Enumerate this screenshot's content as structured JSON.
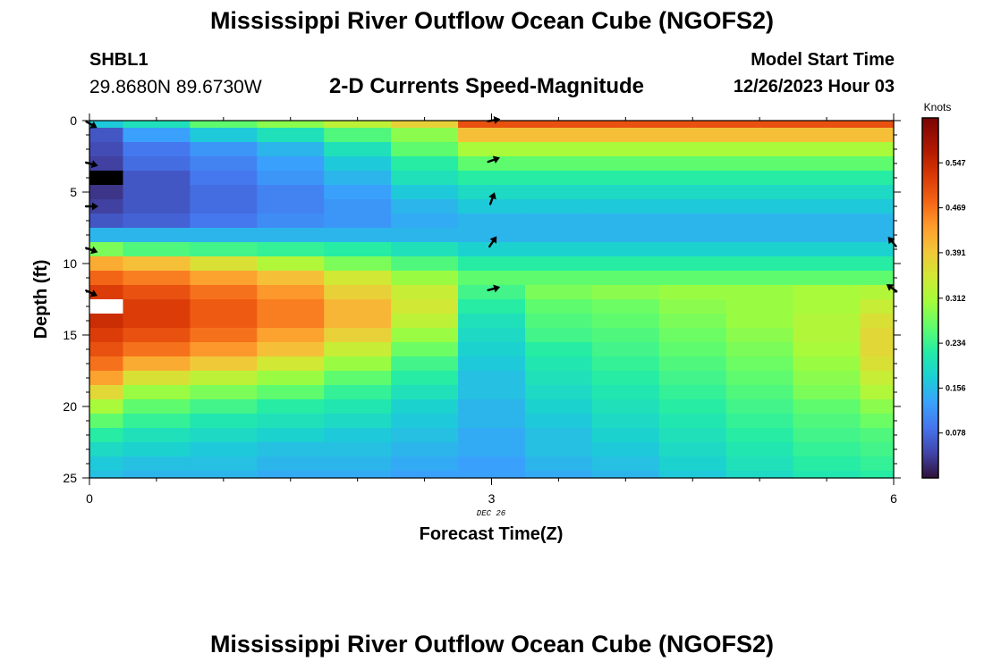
{
  "header": {
    "title": "Mississippi River Outflow Ocean Cube (NGOFS2)",
    "station_id": "SHBL1",
    "station_coords": "29.8680N  89.6730W",
    "subtitle": "2-D Currents Speed-Magnitude",
    "model_label": "Model Start Time",
    "model_time": "12/26/2023 Hour 03"
  },
  "footer": {
    "title": "Mississippi River Outflow Ocean Cube (NGOFS2)"
  },
  "chart_data": {
    "type": "heatmap",
    "title": "2-D Currents Speed-Magnitude",
    "xlabel": "Forecast Time(Z)",
    "ylabel": "Depth (ft)",
    "x_date_label": "DEC 26",
    "xlim": [
      0,
      6
    ],
    "ylim": [
      0,
      25
    ],
    "x_ticks": [
      0,
      3,
      6
    ],
    "y_ticks": [
      0,
      5,
      10,
      15,
      20,
      25
    ],
    "y_inverted": true,
    "colorbar": {
      "unit": "Knots",
      "min": 0.0,
      "max": 0.625,
      "ticks": [
        "0.078",
        "0.156",
        "0.234",
        "0.312",
        "0.391",
        "0.469",
        "0.547"
      ]
    },
    "x_columns": [
      0,
      0.5,
      1,
      1.5,
      2,
      2.5,
      3,
      3.5,
      4,
      4.5,
      5,
      5.5,
      6
    ],
    "depth_rows": [
      0,
      1,
      2,
      3,
      4,
      5,
      6,
      7,
      8,
      9,
      10,
      11,
      12,
      13,
      14,
      15,
      16,
      17,
      18,
      19,
      20,
      21,
      22,
      23,
      24,
      25
    ],
    "values": [
      [
        0.17,
        0.2,
        0.26,
        0.29,
        0.33,
        0.38,
        0.5,
        0.5,
        0.5,
        0.5,
        0.5,
        0.5,
        0.5
      ],
      [
        0.06,
        0.13,
        0.17,
        0.2,
        0.25,
        0.29,
        0.4,
        0.4,
        0.4,
        0.4,
        0.4,
        0.4,
        0.4
      ],
      [
        0.05,
        0.09,
        0.12,
        0.15,
        0.2,
        0.26,
        0.31,
        0.31,
        0.31,
        0.31,
        0.31,
        0.31,
        0.31
      ],
      [
        0.04,
        0.08,
        0.1,
        0.13,
        0.17,
        0.22,
        0.26,
        0.26,
        0.26,
        0.26,
        0.26,
        0.26,
        0.26
      ],
      [
        0.01,
        0.06,
        0.09,
        0.12,
        0.15,
        0.2,
        0.22,
        0.22,
        0.22,
        0.22,
        0.22,
        0.22,
        0.22
      ],
      [
        0.03,
        0.06,
        0.08,
        0.1,
        0.13,
        0.17,
        0.19,
        0.19,
        0.19,
        0.19,
        0.19,
        0.19,
        0.19
      ],
      [
        0.04,
        0.06,
        0.08,
        0.1,
        0.12,
        0.15,
        0.17,
        0.17,
        0.17,
        0.17,
        0.17,
        0.17,
        0.17
      ],
      [
        0.06,
        0.07,
        0.09,
        0.11,
        0.12,
        0.14,
        0.15,
        0.15,
        0.15,
        0.15,
        0.15,
        0.15,
        0.15
      ],
      [
        0.15,
        0.15,
        0.15,
        0.15,
        0.15,
        0.15,
        0.15,
        0.15,
        0.15,
        0.15,
        0.15,
        0.15,
        0.15
      ],
      [
        0.28,
        0.25,
        0.24,
        0.23,
        0.22,
        0.2,
        0.18,
        0.18,
        0.18,
        0.18,
        0.18,
        0.18,
        0.18
      ],
      [
        0.42,
        0.4,
        0.36,
        0.32,
        0.28,
        0.25,
        0.22,
        0.22,
        0.22,
        0.22,
        0.22,
        0.22,
        0.22
      ],
      [
        0.48,
        0.46,
        0.43,
        0.4,
        0.35,
        0.3,
        0.26,
        0.26,
        0.26,
        0.26,
        0.26,
        0.26,
        0.26
      ],
      [
        0.52,
        0.5,
        0.47,
        0.44,
        0.38,
        0.34,
        0.24,
        0.28,
        0.29,
        0.3,
        0.3,
        0.31,
        0.32
      ],
      [
        0.54,
        0.52,
        0.49,
        0.46,
        0.41,
        0.35,
        0.22,
        0.26,
        0.27,
        0.29,
        0.3,
        0.31,
        0.34
      ],
      [
        0.54,
        0.52,
        0.49,
        0.46,
        0.41,
        0.33,
        0.2,
        0.25,
        0.26,
        0.28,
        0.3,
        0.32,
        0.36
      ],
      [
        0.52,
        0.5,
        0.47,
        0.43,
        0.38,
        0.3,
        0.19,
        0.24,
        0.25,
        0.27,
        0.29,
        0.32,
        0.37
      ],
      [
        0.5,
        0.47,
        0.44,
        0.4,
        0.34,
        0.27,
        0.18,
        0.22,
        0.24,
        0.26,
        0.28,
        0.31,
        0.37
      ],
      [
        0.47,
        0.42,
        0.39,
        0.35,
        0.3,
        0.24,
        0.17,
        0.21,
        0.23,
        0.25,
        0.27,
        0.3,
        0.36
      ],
      [
        0.43,
        0.36,
        0.33,
        0.3,
        0.26,
        0.22,
        0.16,
        0.2,
        0.22,
        0.24,
        0.26,
        0.29,
        0.34
      ],
      [
        0.37,
        0.3,
        0.28,
        0.26,
        0.23,
        0.2,
        0.16,
        0.19,
        0.21,
        0.23,
        0.25,
        0.28,
        0.32
      ],
      [
        0.31,
        0.26,
        0.24,
        0.22,
        0.21,
        0.18,
        0.15,
        0.18,
        0.2,
        0.22,
        0.24,
        0.26,
        0.29
      ],
      [
        0.26,
        0.23,
        0.21,
        0.2,
        0.19,
        0.17,
        0.15,
        0.17,
        0.19,
        0.21,
        0.23,
        0.25,
        0.27
      ],
      [
        0.22,
        0.2,
        0.19,
        0.18,
        0.17,
        0.16,
        0.14,
        0.16,
        0.18,
        0.2,
        0.22,
        0.24,
        0.25
      ],
      [
        0.19,
        0.18,
        0.17,
        0.16,
        0.16,
        0.15,
        0.14,
        0.16,
        0.17,
        0.19,
        0.21,
        0.23,
        0.24
      ],
      [
        0.17,
        0.16,
        0.16,
        0.15,
        0.15,
        0.14,
        0.13,
        0.15,
        0.16,
        0.18,
        0.2,
        0.22,
        0.23
      ],
      [
        0.16,
        0.15,
        0.15,
        0.14,
        0.14,
        0.13,
        0.13,
        0.14,
        0.15,
        0.17,
        0.19,
        0.21,
        0.22
      ]
    ],
    "vectors": [
      {
        "time": 0,
        "depth": 0.2,
        "angle_deg": 30
      },
      {
        "time": 0,
        "depth": 3.0,
        "angle_deg": 15
      },
      {
        "time": 0,
        "depth": 6.0,
        "angle_deg": 0
      },
      {
        "time": 0,
        "depth": 9.0,
        "angle_deg": 20
      },
      {
        "time": 0,
        "depth": 12.0,
        "angle_deg": 25
      },
      {
        "time": 3,
        "depth": 0.0,
        "angle_deg": -10
      },
      {
        "time": 3,
        "depth": 2.8,
        "angle_deg": -20
      },
      {
        "time": 3,
        "depth": 5.6,
        "angle_deg": -70
      },
      {
        "time": 3,
        "depth": 8.6,
        "angle_deg": -55
      },
      {
        "time": 3,
        "depth": 11.8,
        "angle_deg": -15
      },
      {
        "time": 6,
        "depth": 8.6,
        "angle_deg": 230
      },
      {
        "time": 6,
        "depth": 11.8,
        "angle_deg": 215
      }
    ],
    "masked_cells": [
      {
        "time_from": 0,
        "time_to": 0.25,
        "depth_from": 3.5,
        "depth_to": 4.5,
        "fill": "#000000"
      },
      {
        "time_from": 0,
        "time_to": 0.25,
        "depth_from": 12.5,
        "depth_to": 13.5,
        "fill": "#ffffff"
      }
    ]
  }
}
